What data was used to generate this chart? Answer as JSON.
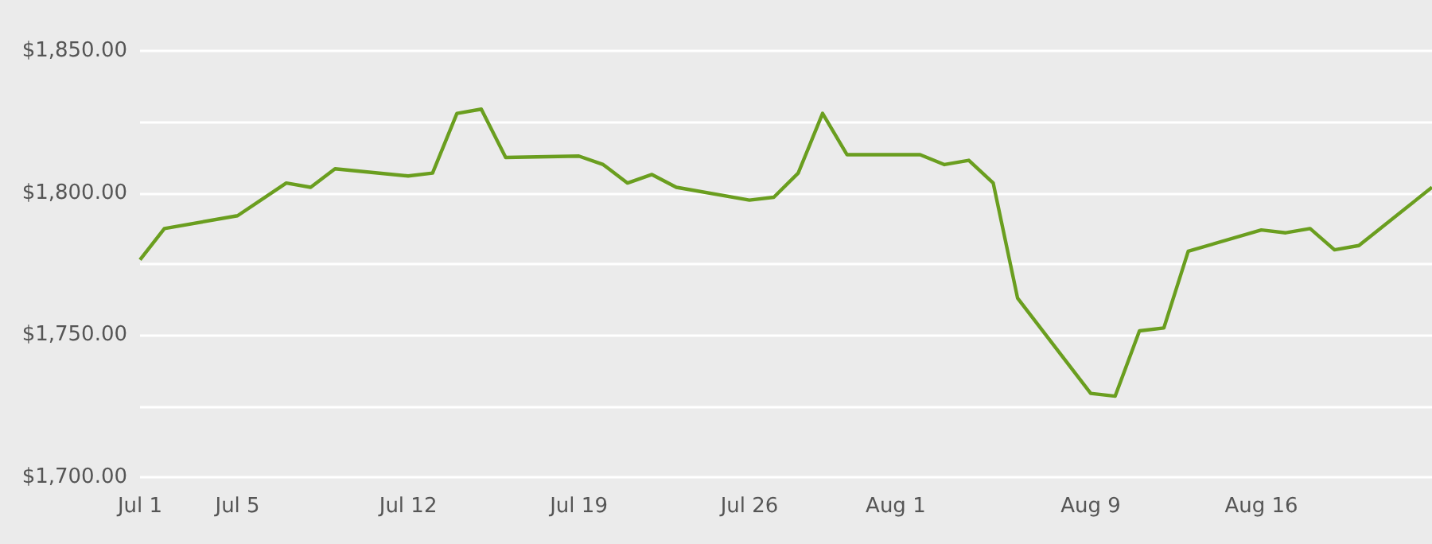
{
  "chart_data": {
    "type": "line",
    "x": [
      "--07-01",
      "--07-02",
      "--07-05",
      "--07-07",
      "--07-08",
      "--07-09",
      "--07-12",
      "--07-13",
      "--07-14",
      "--07-15",
      "--07-16",
      "--07-19",
      "--07-20",
      "--07-21",
      "--07-22",
      "--07-23",
      "--07-26",
      "--07-27",
      "--07-28",
      "--07-29",
      "--07-30",
      "--08-02",
      "--08-03",
      "--08-04",
      "--08-05",
      "--08-06",
      "--08-09",
      "--08-10",
      "--08-11",
      "--08-12",
      "--08-13",
      "--08-16",
      "--08-17",
      "--08-18",
      "--08-19",
      "--08-20",
      "--08-23"
    ],
    "series": [
      {
        "color": "#6a9e1f",
        "values": [
          1776.5,
          1787.5,
          1792,
          1803.5,
          1802,
          1808.5,
          1806,
          1807,
          1828,
          1829.5,
          1812.5,
          1813,
          1810,
          1803.5,
          1806.5,
          1802,
          1797.5,
          1798.5,
          1807,
          1828,
          1813.5,
          1813.5,
          1810,
          1811.5,
          1803.5,
          1763,
          1729.5,
          1728.5,
          1751.5,
          1752.5,
          1779.5,
          1787,
          1786,
          1787.5,
          1780,
          1781.5,
          1802
        ]
      }
    ],
    "xlim": [
      "--07-01",
      "--08-23"
    ],
    "xticks": [
      {
        "value": "--07-01",
        "label": "Jul 1"
      },
      {
        "value": "--07-05",
        "label": "Jul 5"
      },
      {
        "value": "--07-12",
        "label": "Jul 12"
      },
      {
        "value": "--07-19",
        "label": "Jul 19"
      },
      {
        "value": "--07-26",
        "label": "Jul 26"
      },
      {
        "value": "--08-01",
        "label": "Aug 1"
      },
      {
        "value": "--08-09",
        "label": "Aug 9"
      },
      {
        "value": "--08-16",
        "label": "Aug 16"
      }
    ],
    "ylim": [
      1700,
      1850
    ],
    "yticks": [
      {
        "value": 1700,
        "label": "$1,700.00"
      },
      {
        "value": 1725,
        "label": null
      },
      {
        "value": 1750,
        "label": "$1,750.00"
      },
      {
        "value": 1775,
        "label": null
      },
      {
        "value": 1800,
        "label": "$1,800.00"
      },
      {
        "value": 1825,
        "label": null
      },
      {
        "value": 1850,
        "label": "$1,850.00"
      }
    ],
    "grid": "y",
    "marker": "none"
  }
}
